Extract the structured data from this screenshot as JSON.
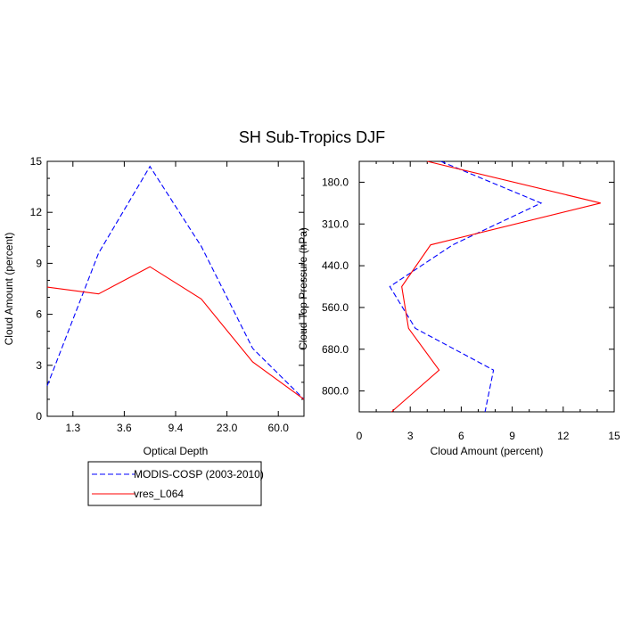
{
  "figure": {
    "title": "SH Sub-Tropics DJF"
  },
  "legend": {
    "entries": [
      {
        "label": "MODIS-COSP (2003-2010)",
        "color": "#0000ff",
        "dash": "dashed"
      },
      {
        "label": "vres_L064",
        "color": "#ff0000",
        "dash": "solid"
      }
    ]
  },
  "chart_data": [
    {
      "type": "line",
      "xlabel": "Optical Depth",
      "ylabel": "Cloud Amount (percent)",
      "x_tick_labels": [
        "1.3",
        "3.6",
        "9.4",
        "23.0",
        "60.0"
      ],
      "y_ticks": [
        0,
        3,
        6,
        9,
        12,
        15
      ],
      "ylim": [
        0,
        15
      ],
      "series": [
        {
          "name": "MODIS-COSP (2003-2010)",
          "color": "#0000ff",
          "dash": "dashed",
          "values": [
            1.8,
            9.6,
            14.7,
            10.0,
            4.0,
            1.0
          ]
        },
        {
          "name": "vres_L064",
          "color": "#ff0000",
          "dash": "solid",
          "values": [
            7.6,
            7.2,
            8.8,
            6.9,
            3.2,
            1.0
          ]
        }
      ]
    },
    {
      "type": "line",
      "xlabel": "Cloud Amount (percent)",
      "ylabel": "Cloud Top Pressure (hPa)",
      "x_ticks": [
        0,
        3,
        6,
        9,
        12,
        15
      ],
      "xlim": [
        0,
        15
      ],
      "y_tick_labels": [
        "180.0",
        "310.0",
        "440.0",
        "560.0",
        "680.0",
        "800.0"
      ],
      "series": [
        {
          "name": "MODIS-COSP (2003-2010)",
          "color": "#0000ff",
          "dash": "dashed",
          "values": [
            4.8,
            10.7,
            5.5,
            1.8,
            3.3,
            7.9,
            7.4
          ]
        },
        {
          "name": "vres_L064",
          "color": "#ff0000",
          "dash": "solid",
          "values": [
            4.0,
            14.2,
            4.2,
            2.5,
            2.9,
            4.7,
            1.9
          ]
        }
      ]
    }
  ]
}
